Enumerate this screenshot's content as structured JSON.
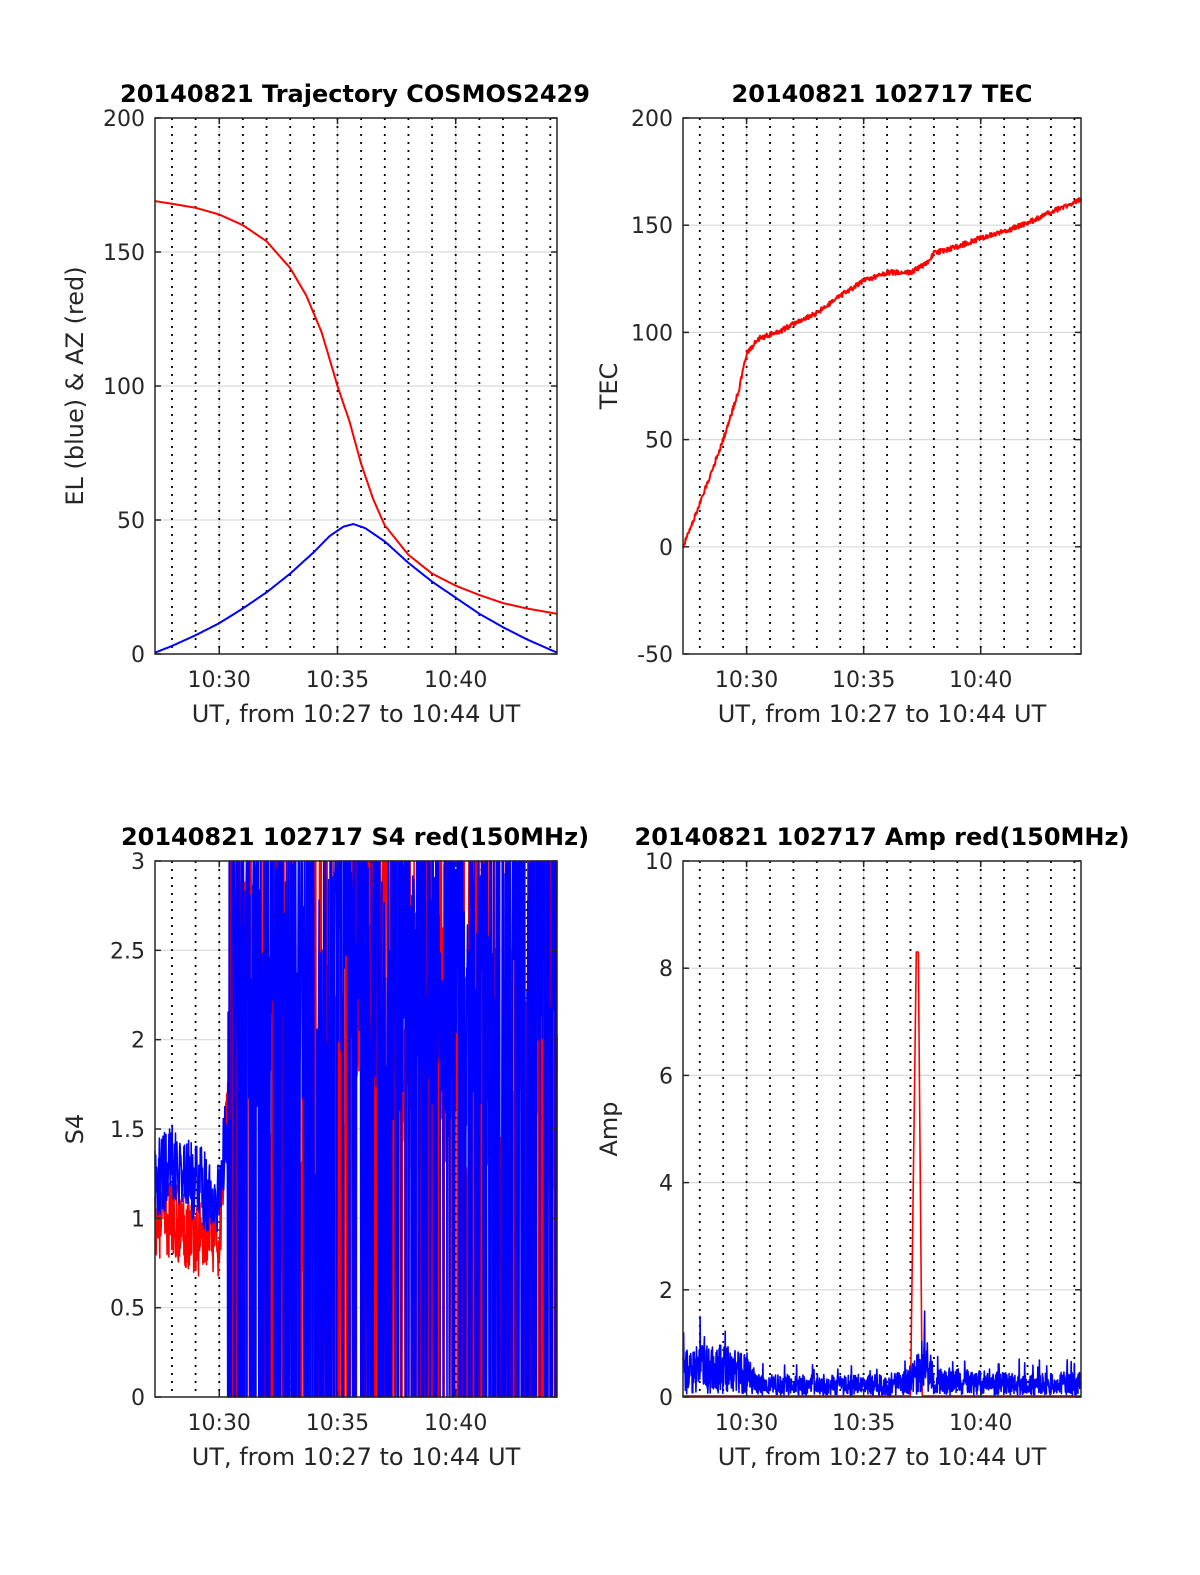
{
  "figure": {
    "background": "#ffffff"
  },
  "colors": {
    "red": "#ff0000",
    "blue": "#0000ff",
    "grid": "#d9d9d9",
    "vgrid": "#000000",
    "axis": "#262626"
  },
  "chart_data": [
    {
      "id": "trajectory",
      "type": "line",
      "title": "20140821 Trajectory COSMOS2429",
      "xlabel": "UT, from 10:27 to 10:44 UT",
      "ylabel": "EL (blue) & AZ (red)",
      "xlim": [
        "10:27:17",
        "10:44:17"
      ],
      "ylim": [
        0,
        200
      ],
      "yticks": [
        "0",
        "50",
        "100",
        "150",
        "200"
      ],
      "xticks": [
        "10:30",
        "10:35",
        "10:40"
      ],
      "grid": true,
      "series": [
        {
          "color": "red",
          "x": [
            "10:27:17",
            "10:28:00",
            "10:29:00",
            "10:30:00",
            "10:31:00",
            "10:32:00",
            "10:33:00",
            "10:33:40",
            "10:34:20",
            "10:35:00",
            "10:35:30",
            "10:36:00",
            "10:36:30",
            "10:37:00",
            "10:38:00",
            "10:39:00",
            "10:40:00",
            "10:41:00",
            "10:42:00",
            "10:43:00",
            "10:44:17"
          ],
          "values": [
            169,
            168,
            166.5,
            164,
            160,
            154,
            144,
            134,
            120,
            100,
            87,
            71,
            58,
            48,
            37,
            30,
            25.5,
            22,
            19,
            17,
            15
          ]
        },
        {
          "color": "blue",
          "x": [
            "10:27:17",
            "10:28:00",
            "10:29:00",
            "10:30:00",
            "10:31:00",
            "10:32:00",
            "10:33:00",
            "10:34:00",
            "10:34:40",
            "10:35:15",
            "10:35:40",
            "10:36:10",
            "10:37:00",
            "10:38:00",
            "10:39:00",
            "10:40:00",
            "10:41:00",
            "10:42:00",
            "10:43:00",
            "10:44:17"
          ],
          "values": [
            0.5,
            3,
            7,
            11.5,
            17,
            23,
            30,
            38,
            44,
            47.5,
            48.5,
            47,
            42,
            34,
            27,
            21,
            15,
            10,
            5.5,
            0.5
          ]
        }
      ]
    },
    {
      "id": "tec",
      "type": "line",
      "title": "20140821 102717 TEC",
      "xlabel": "UT, from 10:27 to 10:44 UT",
      "ylabel": "TEC",
      "xlim": [
        "10:27:17",
        "10:44:17"
      ],
      "ylim": [
        -50,
        200
      ],
      "yticks": [
        "-50",
        "0",
        "50",
        "100",
        "150",
        "200"
      ],
      "xticks": [
        "10:30",
        "10:35",
        "10:40"
      ],
      "grid": true,
      "series": [
        {
          "color": "red",
          "x": [
            "10:27:17",
            "10:28:00",
            "10:29:00",
            "10:29:40",
            "10:30:00",
            "10:30:30",
            "10:31:00",
            "10:31:30",
            "10:32:00",
            "10:33:00",
            "10:34:00",
            "10:35:00",
            "10:36:00",
            "10:37:00",
            "10:37:40",
            "10:38:00",
            "10:39:00",
            "10:40:00",
            "10:41:00",
            "10:42:00",
            "10:43:00",
            "10:44:17"
          ],
          "values": [
            0,
            20,
            50,
            73,
            90,
            97,
            99,
            101,
            104,
            109,
            117,
            124,
            128,
            128,
            132,
            137,
            140,
            144,
            147,
            151,
            156,
            162
          ]
        }
      ]
    },
    {
      "id": "s4",
      "type": "line",
      "title": "20140821 102717 S4 red(150MHz)",
      "xlabel": "UT, from 10:27 to 10:44 UT",
      "ylabel": "S4",
      "xlim": [
        "10:27:17",
        "10:44:17"
      ],
      "ylim": [
        0,
        3
      ],
      "yticks": [
        "0",
        "0.5",
        "1",
        "1.5",
        "2",
        "2.5",
        "3"
      ],
      "xticks": [
        "10:30",
        "10:35",
        "10:40"
      ],
      "grid": true,
      "series": [
        {
          "color": "red",
          "x": [
            "10:27:17",
            "10:28:00",
            "10:29:00",
            "10:30:00",
            "10:31:00",
            "10:32:00",
            "10:33:00",
            "10:34:00",
            "10:35:00",
            "10:36:00",
            "10:37:00",
            "10:38:00",
            "10:39:00",
            "10:40:00",
            "10:41:00",
            "10:42:00",
            "10:43:00",
            "10:44:17"
          ],
          "values": [
            1.0,
            1.0,
            0.9,
            0.9,
            2.8,
            1.5,
            0.3,
            1.2,
            1.8,
            2.4,
            2.8,
            2.0,
            2.1,
            2.0,
            1.9,
            1.8,
            2.0,
            1.7
          ]
        },
        {
          "color": "blue",
          "x": [
            "10:27:17",
            "10:28:00",
            "10:29:00",
            "10:30:00",
            "10:31:00",
            "10:32:00",
            "10:33:00",
            "10:34:00",
            "10:35:00",
            "10:36:00",
            "10:37:00",
            "10:38:00",
            "10:39:00",
            "10:40:00",
            "10:41:00",
            "10:42:00",
            "10:43:00",
            "10:44:17"
          ],
          "values": [
            1.2,
            1.3,
            1.2,
            1.1,
            2.5,
            2.3,
            2.6,
            1.8,
            2.7,
            2.6,
            2.2,
            2.5,
            2.3,
            2.2,
            2.4,
            2.5,
            2.6,
            2.7
          ]
        }
      ]
    },
    {
      "id": "amp",
      "type": "line",
      "title": "20140821 102717 Amp red(150MHz)",
      "xlabel": "UT, from 10:27 to 10:44 UT",
      "ylabel": "Amp",
      "xlim": [
        "10:27:17",
        "10:44:17"
      ],
      "ylim": [
        0,
        10
      ],
      "yticks": [
        "0",
        "2",
        "4",
        "6",
        "8",
        "10"
      ],
      "xticks": [
        "10:30",
        "10:35",
        "10:40"
      ],
      "grid": true,
      "series": [
        {
          "color": "red",
          "x": [
            "10:27:17",
            "10:37:00",
            "10:37:15",
            "10:37:20",
            "10:37:30",
            "10:44:17"
          ],
          "values": [
            0.02,
            0.02,
            8.3,
            8.3,
            0.02,
            0.02
          ]
        },
        {
          "color": "blue",
          "x": [
            "10:27:17",
            "10:28:00",
            "10:29:00",
            "10:30:00",
            "10:30:30",
            "10:32:00",
            "10:34:00",
            "10:36:00",
            "10:37:00",
            "10:37:40",
            "10:38:00",
            "10:40:00",
            "10:42:00",
            "10:44:17"
          ],
          "values": [
            0.6,
            0.7,
            0.7,
            0.6,
            0.3,
            0.3,
            0.3,
            0.3,
            0.4,
            0.8,
            0.4,
            0.35,
            0.3,
            0.35
          ]
        }
      ]
    }
  ]
}
